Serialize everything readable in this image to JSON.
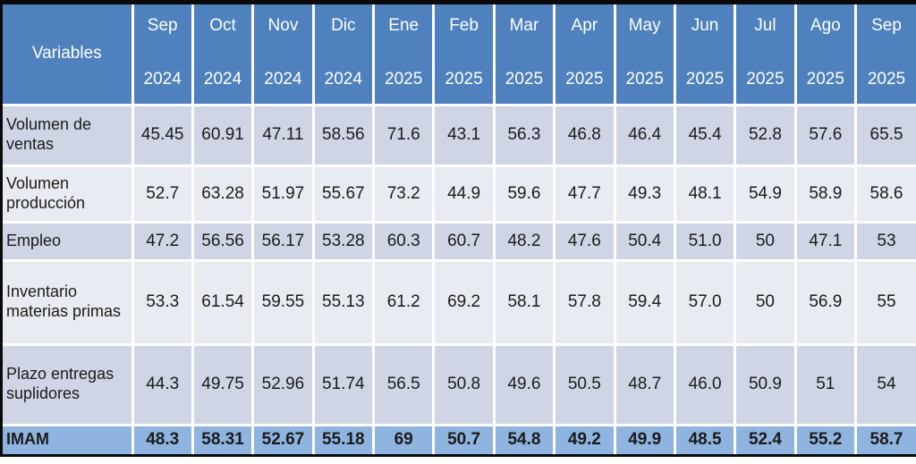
{
  "chart_data": {
    "type": "table",
    "title": "",
    "corner_label": "Variables",
    "columns": [
      {
        "month": "Sep",
        "year": "2024"
      },
      {
        "month": "Oct",
        "year": "2024"
      },
      {
        "month": "Nov",
        "year": "2024"
      },
      {
        "month": "Dic",
        "year": "2024"
      },
      {
        "month": "Ene",
        "year": "2025"
      },
      {
        "month": "Feb",
        "year": "2025"
      },
      {
        "month": "Mar",
        "year": "2025"
      },
      {
        "month": "Apr",
        "year": "2025"
      },
      {
        "month": "May",
        "year": "2025"
      },
      {
        "month": "Jun",
        "year": "2025"
      },
      {
        "month": "Jul",
        "year": "2025"
      },
      {
        "month": "Ago",
        "year": "2025"
      },
      {
        "month": "Sep",
        "year": "2025"
      }
    ],
    "rows": [
      {
        "label": "Volumen de ventas",
        "values": [
          "45.45",
          "60.91",
          "47.11",
          "58.56",
          "71.6",
          "43.1",
          "56.3",
          "46.8",
          "46.4",
          "45.4",
          "52.8",
          "57.6",
          "65.5"
        ]
      },
      {
        "label": "Volumen producción",
        "values": [
          "52.7",
          "63.28",
          "51.97",
          "55.67",
          "73.2",
          "44.9",
          "59.6",
          "47.7",
          "49.3",
          "48.1",
          "54.9",
          "58.9",
          "58.6"
        ]
      },
      {
        "label": "Empleo",
        "values": [
          "47.2",
          "56.56",
          "56.17",
          "53.28",
          "60.3",
          "60.7",
          "48.2",
          "47.6",
          "50.4",
          "51.0",
          "50",
          "47.1",
          "53"
        ]
      },
      {
        "label": "Inventario materias primas",
        "values": [
          "53.3",
          "61.54",
          "59.55",
          "55.13",
          "61.2",
          "69.2",
          "58.1",
          "57.8",
          "59.4",
          "57.0",
          "50",
          "56.9",
          "55"
        ]
      },
      {
        "label": "Plazo entregas suplidores",
        "values": [
          "44.3",
          "49.75",
          "52.96",
          "51.74",
          "56.5",
          "50.8",
          "49.6",
          "50.5",
          "48.7",
          "46.0",
          "50.9",
          "51",
          "54"
        ]
      },
      {
        "label": "IMAM",
        "is_total": true,
        "values": [
          "48.3",
          "58.31",
          "52.67",
          "55.18",
          "69",
          "50.7",
          "54.8",
          "49.2",
          "49.9",
          "48.5",
          "52.4",
          "55.2",
          "58.7"
        ]
      }
    ]
  },
  "colors": {
    "header_bg": "#4E81BD",
    "band_dark": "#CFD5E5",
    "band_light": "#E9EBF2",
    "total_row_bg": "#8FB4DF",
    "header_text": "#FFFFFF",
    "body_text": "#1B1B1B",
    "frame": "#0A0A0A"
  }
}
